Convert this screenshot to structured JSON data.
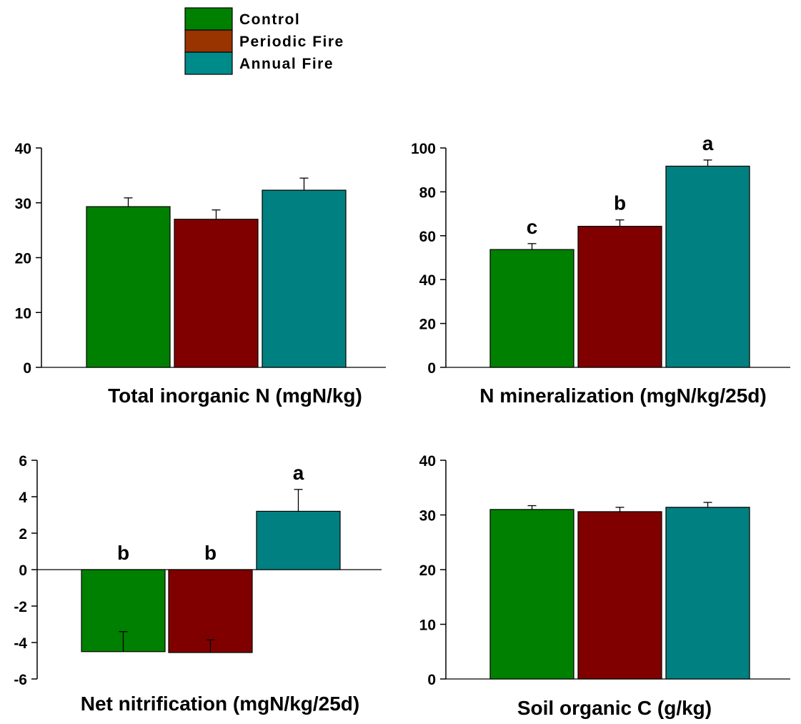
{
  "legend": {
    "items": [
      {
        "label": "Control",
        "color": "#008000"
      },
      {
        "label": "Periodic Fire",
        "color": "#993300"
      },
      {
        "label": "Annual Fire",
        "color": "#008B8B"
      }
    ]
  },
  "chart_data": [
    {
      "type": "bar",
      "xlabel": "Total inorganic N (mgN/kg)",
      "ylim": [
        0,
        40
      ],
      "yticks": [
        0,
        10,
        20,
        30,
        40
      ],
      "categories": [
        "Control",
        "Periodic Fire",
        "Annual Fire"
      ],
      "values": [
        29.3,
        27.0,
        32.3
      ],
      "errors": [
        1.6,
        1.7,
        2.2
      ],
      "letters": [
        "",
        "",
        ""
      ],
      "colors": [
        "#008000",
        "#800000",
        "#008080"
      ]
    },
    {
      "type": "bar",
      "xlabel": "N mineralization (mgN/kg/25d)",
      "ylim": [
        0,
        100
      ],
      "yticks": [
        0,
        20,
        40,
        60,
        80,
        100
      ],
      "categories": [
        "Control",
        "Periodic Fire",
        "Annual Fire"
      ],
      "values": [
        53.7,
        64.3,
        91.7
      ],
      "errors": [
        2.7,
        2.9,
        2.8
      ],
      "letters": [
        "c",
        "b",
        "a"
      ],
      "colors": [
        "#008000",
        "#800000",
        "#008080"
      ]
    },
    {
      "type": "bar",
      "xlabel": "Net nitrification (mgN/kg/25d)",
      "ylim": [
        -6,
        6
      ],
      "yticks": [
        -6,
        -4,
        -2,
        0,
        2,
        4,
        6
      ],
      "categories": [
        "Control",
        "Periodic Fire",
        "Annual Fire"
      ],
      "values": [
        -4.5,
        -4.55,
        3.2
      ],
      "errors": [
        1.1,
        0.7,
        1.2
      ],
      "letters": [
        "b",
        "b",
        "a"
      ],
      "colors": [
        "#008000",
        "#800000",
        "#008080"
      ]
    },
    {
      "type": "bar",
      "xlabel": "Soil organic C (g/kg)",
      "ylim": [
        0,
        40
      ],
      "yticks": [
        0,
        10,
        20,
        30,
        40
      ],
      "categories": [
        "Control",
        "Periodic Fire",
        "Annual Fire"
      ],
      "values": [
        31.0,
        30.6,
        31.4
      ],
      "errors": [
        0.7,
        0.8,
        0.9
      ],
      "letters": [
        "",
        "",
        ""
      ],
      "colors": [
        "#008000",
        "#800000",
        "#008080"
      ]
    }
  ]
}
